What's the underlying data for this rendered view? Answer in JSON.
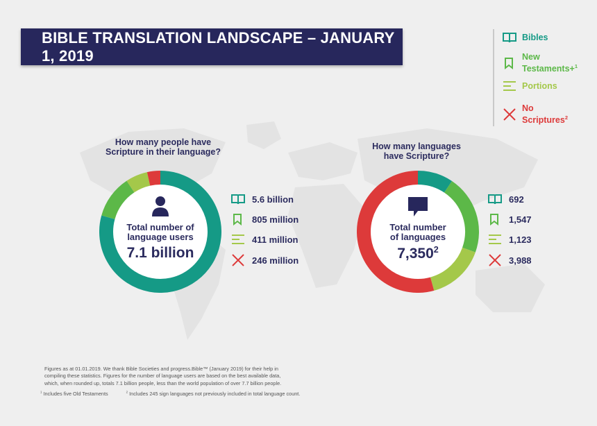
{
  "title": "BIBLE TRANSLATION LANDSCAPE – JANUARY 1, 2019",
  "colors": {
    "bibles": "#159a86",
    "new_testaments": "#5cb848",
    "portions": "#a4c84a",
    "no_scriptures": "#dd3a3a",
    "navy": "#27275c"
  },
  "legend": {
    "bibles": "Bibles",
    "new_testaments_line1": "New",
    "new_testaments_line2": "Testaments+",
    "new_testaments_sup": "1",
    "portions": "Portions",
    "no_scriptures_line1": "No",
    "no_scriptures_line2": "Scriptures",
    "no_scriptures_sup": "2"
  },
  "people": {
    "question_line1": "How many people have",
    "question_line2": "Scripture in their language?",
    "center_line1": "Total number of",
    "center_line2": "language users",
    "total": "7.1 billion",
    "icon": "person-icon",
    "stats": [
      "5.6 billion",
      "805 million",
      "411 million",
      "246 million"
    ]
  },
  "languages": {
    "question_line1": "How many languages",
    "question_line2": "have Scripture?",
    "center_line1": "Total number",
    "center_line2": "of languages",
    "total": "7,350",
    "total_sup": "2",
    "icon": "speech-bubble-icon",
    "stats": [
      "692",
      "1,547",
      "1,123",
      "3,988"
    ]
  },
  "chart_data": [
    {
      "type": "pie",
      "categories": [
        "Bibles",
        "New Testaments+",
        "Portions",
        "No Scriptures"
      ],
      "values": [
        5.6,
        0.805,
        0.411,
        0.246
      ],
      "unit": "billion",
      "title": "How many people have Scripture in their language?"
    },
    {
      "type": "pie",
      "categories": [
        "Bibles",
        "New Testaments+",
        "Portions",
        "No Scriptures"
      ],
      "values": [
        692,
        1547,
        1123,
        3988
      ],
      "title": "How many languages have Scripture?"
    }
  ],
  "footnote": {
    "line1": "Figures as at 01.01.2019. We thank Bible Societies and progress.Bible™ (January 2019) for their help in",
    "line2": "compiling these statistics. Figures for the number of language users are based on the best available data,",
    "line3": "which, when rounded up, totals 7.1 billion people, less than the world population of over 7.7 billion people.",
    "note1_sup": "1",
    "note1": " Includes five Old Testaments",
    "note2_sup": "2",
    "note2": " Includes 245 sign languages not previously included in total language count."
  }
}
